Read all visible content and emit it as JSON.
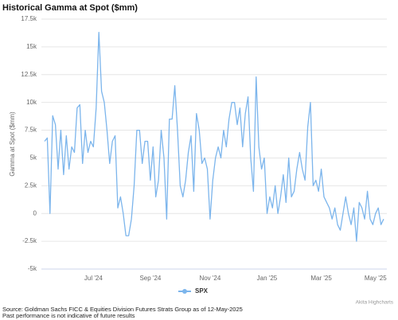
{
  "chart_data": {
    "type": "line",
    "title": "Historical Gamma at Spot ($mm)",
    "y_label": "Gamma at Spot ($mm)",
    "categories": [
      null,
      null,
      null,
      null,
      null,
      null,
      null,
      null,
      null,
      null,
      null,
      null,
      null,
      null,
      null,
      null,
      null,
      null,
      "Jul '24",
      null,
      null,
      null,
      null,
      null,
      null,
      null,
      null,
      null,
      null,
      null,
      null,
      null,
      null,
      null,
      null,
      null,
      null,
      null,
      null,
      "Sep '24",
      null,
      null,
      null,
      null,
      null,
      null,
      null,
      null,
      null,
      null,
      null,
      null,
      null,
      null,
      null,
      null,
      null,
      null,
      null,
      null,
      null,
      "Nov '24",
      null,
      null,
      null,
      null,
      null,
      null,
      null,
      null,
      null,
      null,
      null,
      null,
      null,
      null,
      null,
      null,
      null,
      null,
      null,
      null,
      "Jan '25",
      null,
      null,
      null,
      null,
      null,
      null,
      null,
      null,
      null,
      null,
      null,
      null,
      null,
      null,
      null,
      null,
      null,
      null,
      null,
      "Mar '25",
      null,
      null,
      null,
      null,
      null,
      null,
      null,
      null,
      null,
      null,
      null,
      null,
      null,
      null,
      null,
      null,
      null,
      null,
      null,
      "May '25",
      null,
      null,
      null
    ],
    "series": [
      {
        "name": "SPX",
        "color": "#7cb5ec",
        "values": [
          6500,
          6800,
          0,
          8800,
          8000,
          4000,
          7500,
          3500,
          7000,
          4000,
          6000,
          5500,
          9500,
          9800,
          4500,
          7500,
          5500,
          6500,
          6000,
          9500,
          16300,
          11000,
          10000,
          7500,
          4500,
          6500,
          7000,
          500,
          1500,
          0,
          -2000,
          -2000,
          -500,
          2500,
          7500,
          7500,
          4500,
          6500,
          6500,
          3000,
          6000,
          1500,
          3000,
          7500,
          5000,
          -500,
          8500,
          8500,
          11500,
          7500,
          2500,
          1500,
          3000,
          5500,
          7000,
          2000,
          9000,
          7500,
          4500,
          5000,
          4000,
          -500,
          3000,
          5000,
          6000,
          5000,
          7500,
          6000,
          8500,
          10000,
          10000,
          8000,
          9500,
          6000,
          9000,
          10500,
          5000,
          2000,
          12300,
          6000,
          4000,
          5000,
          0,
          1500,
          500,
          2500,
          0,
          1500,
          3500,
          1000,
          5000,
          1500,
          2000,
          4000,
          5500,
          4000,
          3000,
          7800,
          10000,
          2500,
          3000,
          2000,
          4000,
          1500,
          1000,
          500,
          -500,
          500,
          -1000,
          -1500,
          0,
          1500,
          0,
          -1000,
          500,
          -2500,
          1000,
          500,
          -500,
          2000,
          -500,
          -1000,
          0,
          500,
          -1000,
          -500
        ]
      }
    ],
    "ylim": [
      -5000,
      17500
    ],
    "yticks": [
      {
        "value": -5000,
        "label": "-5k"
      },
      {
        "value": -2500,
        "label": "-2.5k"
      },
      0,
      {
        "value": 2500,
        "label": "2.5k"
      },
      {
        "value": 5000,
        "label": "5k"
      },
      {
        "value": 7500,
        "label": "7.5k"
      },
      {
        "value": 10000,
        "label": "10k"
      },
      {
        "value": 12500,
        "label": "12.5k"
      },
      {
        "value": 15000,
        "label": "15k"
      },
      {
        "value": 17500,
        "label": "17.5k"
      }
    ],
    "grid": true,
    "legend": "bottom",
    "credits": "Akita Highcharts",
    "footer": [
      "Source: Goldman Sachs FICC & Equities Division Futures Strats Group as of 12-May-2025",
      "Past performance is not indicative of future results"
    ]
  }
}
